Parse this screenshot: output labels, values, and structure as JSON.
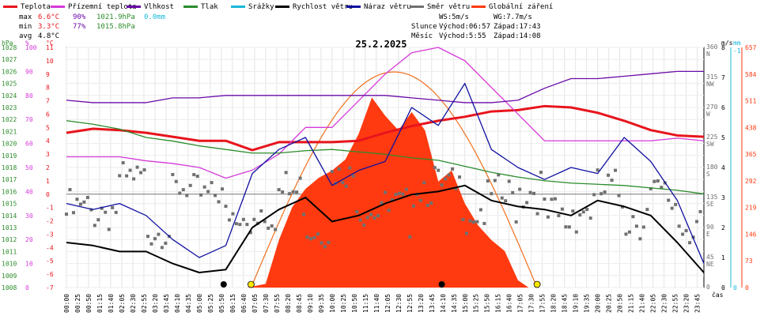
{
  "legend": [
    {
      "label": "Teplota",
      "color": "#e8141c"
    },
    {
      "label": "Přízemní teplota",
      "color": "#d43ad8"
    },
    {
      "label": "Vlhkost",
      "color": "#6a0aa8"
    },
    {
      "label": "Tlak",
      "color": "#2a8c2a"
    },
    {
      "label": "Srážky",
      "color": "#18b8d8"
    },
    {
      "label": "Rychlost větru",
      "color": "#000000"
    },
    {
      "label": "Náraz větru",
      "color": "#1010a0"
    },
    {
      "label": "Směr větru",
      "color": "#707070"
    },
    {
      "label": "Globální záření",
      "color": "#ff3a10"
    }
  ],
  "stats": {
    "max_label": "max",
    "max_temp": "6.6°C",
    "max_hum": "90%",
    "max_press": "1021.9hPa",
    "max_rain": "0.0mm",
    "min_label": "min",
    "min_temp": "3.3°C",
    "min_hum": "77%",
    "min_press": "1015.8hPa",
    "avg_label": "avg",
    "avg_temp": "4.8°C"
  },
  "wind_info": {
    "ws": "WS:5m/s",
    "wg": "WG:7.7m/s"
  },
  "sun": {
    "label": "Slunce",
    "rise": "Východ:06:57",
    "set": "Západ:17:43"
  },
  "moon": {
    "label": "Měsíc",
    "rise": "Východ:5:55",
    "set": "Západ:14:08"
  },
  "chart_data": {
    "type": "line",
    "title": "25.2.2025",
    "xlabel": "čas",
    "x_ticks": [
      "00:00",
      "00:25",
      "00:50",
      "01:15",
      "01:40",
      "02:05",
      "02:30",
      "02:55",
      "03:20",
      "03:45",
      "04:10",
      "04:35",
      "05:00",
      "05:25",
      "05:50",
      "06:15",
      "06:40",
      "07:05",
      "07:30",
      "07:55",
      "08:20",
      "08:45",
      "09:10",
      "09:35",
      "10:00",
      "10:25",
      "10:50",
      "11:15",
      "11:40",
      "12:05",
      "12:30",
      "12:55",
      "13:20",
      "13:45",
      "14:10",
      "14:35",
      "15:00",
      "15:25",
      "15:50",
      "16:15",
      "16:40",
      "17:05",
      "17:30",
      "17:55",
      "18:20",
      "18:45",
      "19:10",
      "19:35",
      "20:00",
      "20:25",
      "20:50",
      "21:15",
      "21:40",
      "22:05",
      "22:30",
      "22:55",
      "23:20",
      "23:45"
    ],
    "axes": {
      "pressure": {
        "label": "hPa",
        "color": "#2a8c2a",
        "range": [
          1008,
          1028
        ],
        "ticks": [
          "1008",
          "1009",
          "1010",
          "1011",
          "1012",
          "1013",
          "1014",
          "1015",
          "1016",
          "1017",
          "1018",
          "1019",
          "1020",
          "1021",
          "1022",
          "1023",
          "1024",
          "1025",
          "1026",
          "1027",
          "1028"
        ]
      },
      "humidity": {
        "label": "%",
        "color": "#d43ad8",
        "range": [
          0,
          100
        ],
        "ticks": [
          "0",
          "10",
          "20",
          "30",
          "40",
          "50",
          "60",
          "70",
          "80",
          "90",
          "100"
        ]
      },
      "temperature": {
        "label": "°C",
        "color": "#e8141c",
        "range": [
          -7,
          11
        ],
        "ticks": [
          "-7",
          "-6",
          "-5",
          "-4",
          "-3",
          "-2",
          "-1",
          "0",
          "1",
          "2",
          "3",
          "4",
          "5",
          "6",
          "7",
          "8",
          "9",
          "10",
          "11"
        ]
      },
      "wind_dir": {
        "label": "°",
        "range": [
          0,
          360
        ],
        "ticks": [
          "0",
          "45",
          "90",
          "135",
          "180",
          "225",
          "270",
          "315",
          "360"
        ],
        "names": [
          "",
          "NE",
          "E",
          "SE",
          "S",
          "SW",
          "W",
          "NW",
          "N"
        ]
      },
      "wind_speed": {
        "label": "m/s",
        "color": "#000000",
        "range": [
          0,
          8
        ],
        "ticks": [
          "0",
          "1",
          "2",
          "3",
          "4",
          "5",
          "6",
          "7",
          "8"
        ]
      },
      "rain": {
        "label": "mm",
        "color": "#18b8d8",
        "ticks": [
          "0",
          "-1"
        ]
      },
      "radiation": {
        "color": "#ff3a10",
        "ticks": [
          "0",
          "73",
          "146",
          "219",
          "292",
          "365",
          "438",
          "511",
          "584",
          "657"
        ]
      }
    },
    "series": [
      {
        "name": "Teplota",
        "axis": "temperature",
        "color": "#e8141c",
        "x": [
          0,
          1,
          2,
          3,
          4,
          5,
          6,
          7,
          8,
          9,
          10,
          11,
          12,
          13,
          14,
          15,
          16,
          17,
          18,
          19,
          20,
          21,
          22,
          23,
          24
        ],
        "values": [
          4.6,
          4.9,
          4.8,
          4.6,
          4.3,
          4.0,
          4.0,
          3.3,
          3.9,
          3.9,
          3.9,
          4.0,
          4.6,
          5.1,
          5.5,
          5.8,
          6.2,
          6.3,
          6.6,
          6.5,
          6.1,
          5.5,
          4.8,
          4.4,
          4.3
        ]
      },
      {
        "name": "Přízemní teplota",
        "axis": "temperature",
        "color": "#d43ad8",
        "x": [
          0,
          1,
          2,
          3,
          4,
          5,
          6,
          7,
          8,
          9,
          10,
          11,
          12,
          13,
          14,
          15,
          16,
          17,
          18,
          19,
          20,
          21,
          22,
          23,
          24
        ],
        "values": [
          2.8,
          2.8,
          2.8,
          2.5,
          2.3,
          2.0,
          1.2,
          1.8,
          3.0,
          5.0,
          5.0,
          7.0,
          9.0,
          10.6,
          11.0,
          10.0,
          8.0,
          6.0,
          4.0,
          4.0,
          4.0,
          4.0,
          4.0,
          4.2,
          4.0
        ]
      },
      {
        "name": "Vlhkost",
        "axis": "humidity",
        "color": "#6a0aa8",
        "x": [
          0,
          1,
          2,
          3,
          4,
          5,
          6,
          7,
          8,
          9,
          10,
          11,
          12,
          13,
          14,
          15,
          16,
          17,
          18,
          19,
          20,
          21,
          22,
          23,
          24
        ],
        "values": [
          78,
          77,
          77,
          77,
          79,
          79,
          80,
          80,
          80,
          80,
          80,
          80,
          80,
          79,
          78,
          77,
          77,
          78,
          83,
          87,
          87,
          88,
          89,
          90,
          90
        ]
      },
      {
        "name": "Tlak",
        "axis": "pressure",
        "color": "#2a8c2a",
        "x": [
          0,
          1,
          2,
          3,
          4,
          5,
          6,
          7,
          8,
          9,
          10,
          11,
          12,
          13,
          14,
          15,
          16,
          17,
          18,
          19,
          20,
          21,
          22,
          23,
          24
        ],
        "values": [
          1021.9,
          1021.6,
          1021.2,
          1020.5,
          1020.2,
          1019.8,
          1019.5,
          1019.2,
          1019.2,
          1019.4,
          1019.5,
          1019.3,
          1019.1,
          1018.8,
          1018.6,
          1018.1,
          1017.6,
          1017.2,
          1016.9,
          1016.7,
          1016.6,
          1016.5,
          1016.3,
          1016.1,
          1015.8
        ]
      },
      {
        "name": "Rychlost větru",
        "axis": "wind_speed",
        "color": "#000000",
        "x": [
          0,
          1,
          2,
          3,
          4,
          5,
          6,
          7,
          8,
          9,
          10,
          11,
          12,
          13,
          14,
          15,
          16,
          17,
          18,
          19,
          20,
          21,
          22,
          23,
          24
        ],
        "values": [
          1.5,
          1.4,
          1.2,
          1.2,
          0.8,
          0.5,
          0.6,
          2.0,
          2.6,
          3.0,
          2.2,
          2.4,
          2.8,
          3.1,
          3.2,
          3.4,
          2.9,
          2.7,
          2.6,
          2.4,
          2.9,
          2.7,
          2.4,
          1.5,
          0.5
        ]
      },
      {
        "name": "Náraz větru",
        "axis": "wind_speed",
        "color": "#1010a0",
        "x": [
          0,
          1,
          2,
          3,
          4,
          5,
          6,
          7,
          8,
          9,
          10,
          11,
          12,
          13,
          14,
          15,
          16,
          17,
          18,
          19,
          20,
          21,
          22,
          23,
          24
        ],
        "values": [
          2.8,
          2.6,
          2.8,
          2.4,
          1.6,
          1.0,
          1.4,
          3.8,
          4.6,
          5.0,
          3.4,
          3.9,
          4.2,
          6.0,
          5.4,
          6.8,
          4.6,
          4.0,
          3.6,
          4.0,
          3.8,
          5.0,
          4.2,
          2.9,
          0.8
        ]
      },
      {
        "name": "Směr větru",
        "axis": "wind_dir",
        "color": "#707070",
        "x": [
          0,
          1,
          2,
          3,
          4,
          5,
          6,
          7,
          8,
          9,
          10,
          11,
          12,
          13,
          14,
          15,
          16,
          17,
          18,
          19,
          20,
          21,
          22,
          23,
          24
        ],
        "values": [
          110,
          120,
          150,
          100,
          130,
          160,
          90,
          120,
          140,
          100,
          150,
          130,
          110,
          160,
          140,
          120,
          130,
          150,
          100,
          120,
          140,
          110,
          130,
          100,
          90
        ]
      },
      {
        "name": "Globální záření",
        "axis": "radiation",
        "color": "#ff3a10",
        "x": [
          6.8,
          7.5,
          8,
          8.5,
          9,
          9.5,
          10,
          10.5,
          11,
          11.5,
          12,
          12.5,
          13,
          13.5,
          14,
          14.5,
          15,
          15.5,
          16,
          16.5,
          17,
          17.4
        ],
        "values": [
          0,
          10,
          130,
          220,
          270,
          300,
          320,
          350,
          420,
          520,
          470,
          430,
          480,
          430,
          290,
          320,
          230,
          170,
          130,
          100,
          20,
          0
        ]
      }
    ]
  }
}
